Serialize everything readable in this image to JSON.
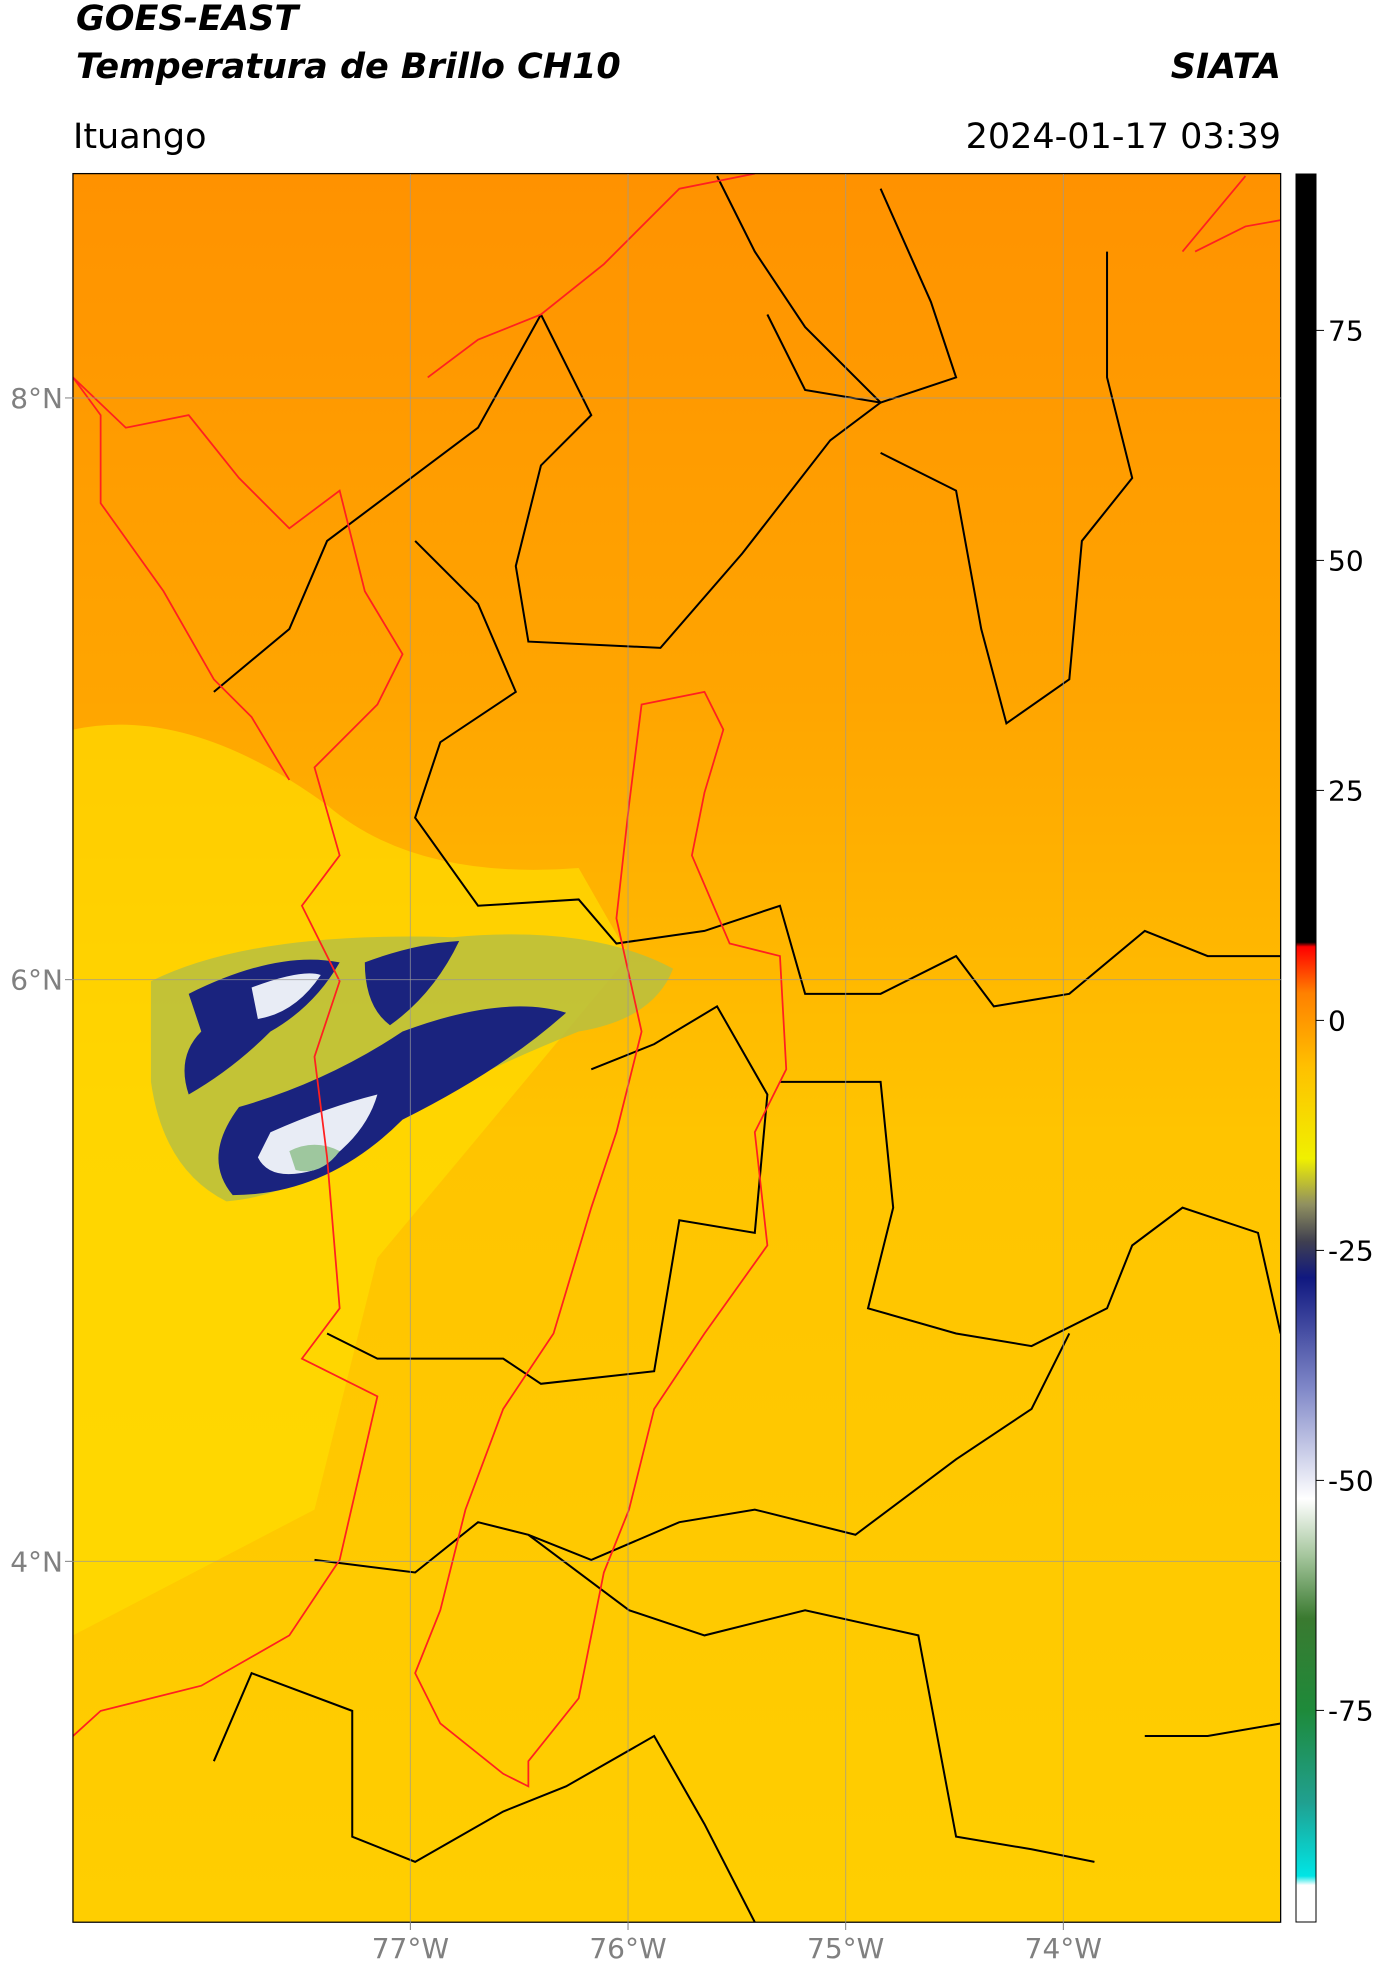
{
  "header": {
    "title": "GOES-EAST",
    "subtitle": "Temperatura de Brillo CH10",
    "source": "SIATA",
    "location": "Ituango",
    "timestamp": "2024-01-17 03:39"
  },
  "map": {
    "xlim": [
      -78.55,
      -73.0
    ],
    "ylim": [
      2.76,
      8.77
    ],
    "xticks": [
      {
        "value": -77,
        "label": "77°W"
      },
      {
        "value": -76,
        "label": "76°W"
      },
      {
        "value": -75,
        "label": "75°W"
      },
      {
        "value": -74,
        "label": "74°W"
      }
    ],
    "yticks": [
      {
        "value": 8,
        "label": "8°N"
      },
      {
        "value": 6,
        "label": "6°N"
      },
      {
        "value": 4,
        "label": "4°N"
      }
    ],
    "grid": true
  },
  "colorbar": {
    "lim": [
      -98,
      92
    ],
    "ticks": [
      -75,
      -50,
      -25,
      0,
      25,
      50,
      75
    ],
    "colormap": [
      {
        "value": -98,
        "color": "#ffffff"
      },
      {
        "value": -94,
        "color": "#ffffff"
      },
      {
        "value": -93,
        "color": "#00e5e5"
      },
      {
        "value": -85,
        "color": "#20a090"
      },
      {
        "value": -75,
        "color": "#1e8a3a"
      },
      {
        "value": -65,
        "color": "#3a7a30"
      },
      {
        "value": -58,
        "color": "#a8c8a0"
      },
      {
        "value": -52,
        "color": "#ffffff"
      },
      {
        "value": -40,
        "color": "#8088c8"
      },
      {
        "value": -28,
        "color": "#101880"
      },
      {
        "value": -24,
        "color": "#404050"
      },
      {
        "value": -20,
        "color": "#909060"
      },
      {
        "value": -15,
        "color": "#f0f000"
      },
      {
        "value": -5,
        "color": "#ffc000"
      },
      {
        "value": 3,
        "color": "#ff8000"
      },
      {
        "value": 8,
        "color": "#ff0000"
      },
      {
        "value": 8.5,
        "color": "#000000"
      },
      {
        "value": 92,
        "color": "#000000"
      }
    ]
  }
}
